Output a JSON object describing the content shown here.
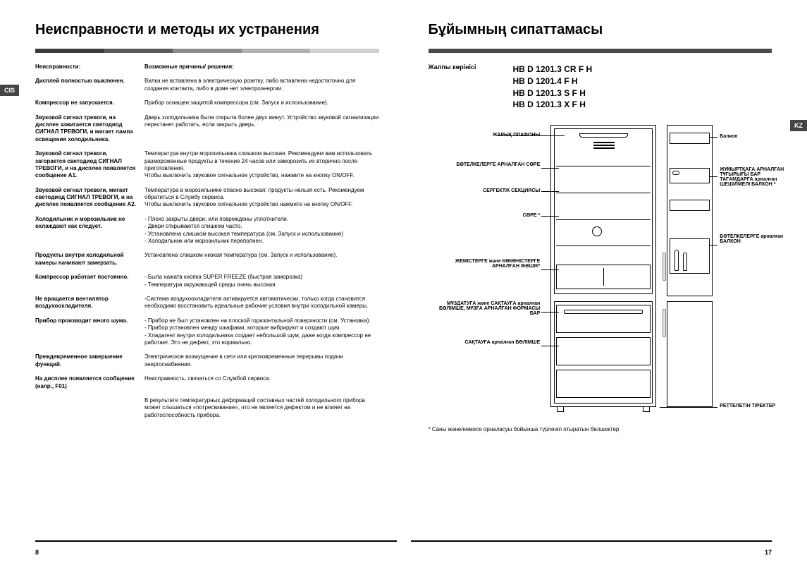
{
  "colors": {
    "bar1": "#3a3a3a",
    "bar2": "#5a5a5a",
    "bar3": "#8a8a8a",
    "bar4": "#b0b0b0",
    "bar5": "#d0d0d0",
    "single_bar": "#4a4a4a"
  },
  "left": {
    "title": "Неисправности и методы их устранения",
    "tab": "CIS",
    "header_col1": "Неисправности:",
    "header_col2": "Возможные причины/ решения:",
    "rows": [
      {
        "p": "Дисплей полностью выключен.",
        "s": "Вилка не вставлена в электрическую розетку, либо вставлена недостаточно для создания контакта, либо в доме нет электроэнергии."
      },
      {
        "p": "Компрессор не запускается.",
        "s": "Прибор оснащен защитой компрессора (см. Запуск и использование)."
      },
      {
        "p": "Звуковой сигнал тревоги, на дисплее зажигается светодиод СИГНАЛ ТРЕВОГИ, и мигает лампа освещения холодильника.",
        "s": "Дверь холодильника была открыта более двух минут. Устройство звуковой сигнализации перестанет работать, если закрыть дверь."
      },
      {
        "p": "Звуковой сигнал тревоги, загорается светодиод СИГНАЛ ТРЕВОГИ, и на дисплее появляется сообщение A1.",
        "s": "Температура внутри морозильника слишком высокая. Рекомендуем вам использовать размороженные продукты в течение 24 часов или заморозить их вторично после приготовления.\nЧтобы выключить звуковое сигнальное устройство, нажмите на кнопку ON/OFF."
      },
      {
        "p": "Звуковой сигнал тревоги, мигает светодиод СИГНАЛ ТРЕВОГИ, и на дисплее появляется сообщение A2.",
        "s": "Температура в морозильнике опасно высокая: продукты нельзя есть. Рекомендуем обратиться в Службу сервиса.\nЧтобы выключить звуковое сигнальное устройство нажмите на кнопку ON/OFF."
      },
      {
        "p": "Холодильник и морозильник не охлаждают как следует.",
        "s": "- Плохо закрыты двери, или повреждены уплотнители.\n- Двери открываются слишком часто.\n- Установлена слишком высокая температура (см. Запуск и использование)\n- Холодильник или морозильник переполнен."
      },
      {
        "p": "Продукты внутри холодильной камеры начинают замерзать.",
        "s": "Установлена слишком низкая температура (см. Запуск и использование)."
      },
      {
        "p": "Компрессор работает постоянно.",
        "s": "- Была нажата кнопка SUPER FREEZE (быстрая заморозка)\n- Температура окружающей среды очень высокая."
      },
      {
        "p": "Не вращается вентилятор воздухоохладителя.",
        "s": "-Система воздухоохладителя активируется автоматически, только когда становится необходимо восстановить идеальные рабочие условия внутри холодильной камеры."
      },
      {
        "p": "Прибор производит много шума.",
        "s": "- Прибор не был установлен на плоской горизонтальной поверхности (см. Установка).\n- Прибор установлен между шкафами, которые вибрируют и создают шум.\n- Хладагент внутри холодильника создает небольшой шум, даже когда компрессор не работает. Это не дефект, это нормально."
      },
      {
        "p": "Преждевременное завершение функций.",
        "s": "Электрическое возмущение в сети или кратковременные перерывы подачи энергоснабжения."
      },
      {
        "p": "На дисплее появляется сообщение (напр., F01)",
        "s": "Неисправность, связаться со Службой сервиса."
      },
      {
        "p": "",
        "s": "В результате температурных деформаций составных частей холодильного прибора может слышаться «потрескивание», что не является дефектом и не влияет на работоспособность прибора."
      }
    ],
    "page_num": "8"
  },
  "right": {
    "title": "Бұйымның сипаттамасы",
    "tab": "KZ",
    "sub_title": "Жалпы көрінісі",
    "models": [
      "HB D 1201.3 CR F H",
      "HB D 1201.4 F H",
      "HB D 1201.3 S F H",
      "HB D 1201.3 X F H"
    ],
    "labels_left": [
      "ЖАРЫҚ ПЛАФОНЫ",
      "БӨТЕЛКЕЛЕРГЕ АРНАЛҒАН СӨРЕ",
      "СЕРГЕКТІК СЕКЦИЯСЫ",
      "СӨРЕ *",
      "ЖЕМІСТЕРГЕ және КӨКӨНІСТЕРГЕ АРНАЛҒАН ЖӘШІК*",
      "МҰЗДАТУҒА және САҚТАУҒА арналған БӨЛІМШЕ, МҰЗҒА АРНАЛҒАН ФОРМАСЫ БАР",
      "САҚТАУҒА арналған БӨЛІМШЕ"
    ],
    "labels_right": [
      "Балкон",
      "ЖҰМЫРТҚАҒА АРНАЛҒАН ТҰҒЫРЫҒЫ БАР ТАҒАМДАРҒА арналған ШЕШІЛМЕЛІ БАЛКОН *",
      "БӨТЕЛКЕЛЕРГЕ арналған БАЛКОН",
      "РЕТТЕЛЕТІН ТІРЕКТЕР"
    ],
    "footnote": "* Саны және/немесе орналасуы бойынша түрленіп отыратын бөлшектер",
    "page_num": "17"
  }
}
